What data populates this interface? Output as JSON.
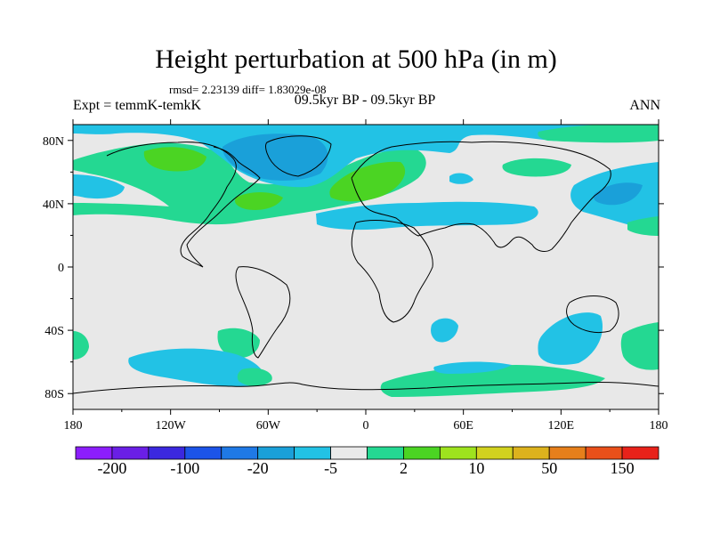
{
  "header": {
    "title": "Height perturbation at 500 hPa (in m)",
    "stats": "rmsd= 2.23139 diff= 1.83029e-08",
    "experiment": "Expt = temmK-temkK",
    "period": "09.5kyr BP - 09.5kyr BP",
    "season": "ANN"
  },
  "map": {
    "lat_labels": [
      "80N",
      "40N",
      "0",
      "40S",
      "80S"
    ],
    "lon_labels": [
      "180",
      "120W",
      "60W",
      "0",
      "60E",
      "120E",
      "180"
    ],
    "background_color": "#e8e8e8"
  },
  "colorbar": {
    "colors": [
      "#8c1efc",
      "#6a1fe6",
      "#3b28df",
      "#1c54e8",
      "#1f79e6",
      "#1aa0d9",
      "#22c2e5",
      "#eaeaea",
      "#24d892",
      "#4bd423",
      "#9ee31e",
      "#d2d21f",
      "#dcb21d",
      "#e67f1b",
      "#e9501a",
      "#e8221a"
    ],
    "labels": [
      {
        "text": "-200",
        "boundary": 1
      },
      {
        "text": "-100",
        "boundary": 3
      },
      {
        "text": "-20",
        "boundary": 5
      },
      {
        "text": "-5",
        "boundary": 7
      },
      {
        "text": "2",
        "boundary": 9
      },
      {
        "text": "10",
        "boundary": 11
      },
      {
        "text": "50",
        "boundary": 13
      },
      {
        "text": "150",
        "boundary": 15
      }
    ]
  },
  "field_colors": {
    "light_blue": "#22c2e5",
    "mid_blue": "#1aa0d9",
    "green": "#24d892",
    "bright_green": "#4bd423"
  }
}
